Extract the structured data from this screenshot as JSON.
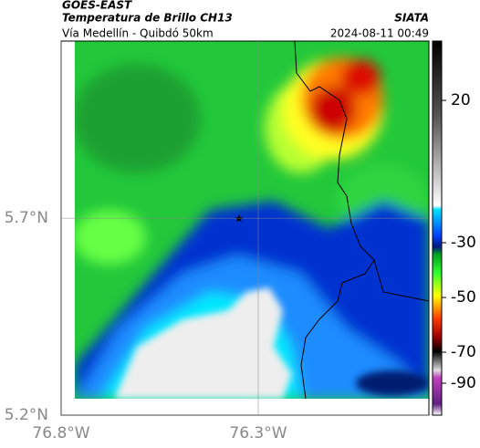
{
  "header": {
    "satellite": "GOES-EAST",
    "title": "Temperatura de Brillo CH13",
    "source": "SIATA",
    "route": "Vía Medellín - Quibdó 50km",
    "datetime": "2024-08-11 00:49"
  },
  "map": {
    "lonlim": [
      -76.8,
      -75.867
    ],
    "latlim": [
      5.2,
      6.15
    ],
    "lonticks": [
      {
        "value": -76.8,
        "label": "76.8°W"
      },
      {
        "value": -76.3,
        "label": "76.3°W"
      }
    ],
    "latticks": [
      {
        "value": 5.7,
        "label": "5.7°N"
      },
      {
        "value": 5.2,
        "label": "5.2°N"
      }
    ]
  },
  "colorbar": {
    "ticks": [
      20,
      -30,
      -50,
      -70,
      -90
    ]
  }
}
